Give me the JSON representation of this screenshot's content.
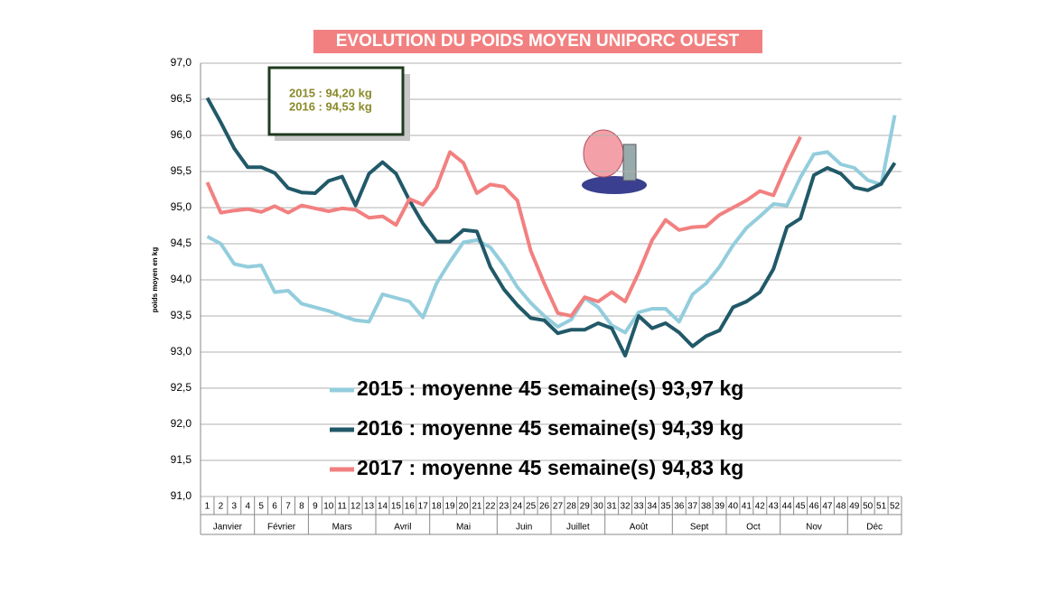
{
  "chart_data": {
    "type": "line",
    "title": "EVOLUTION DU POIDS MOYEN UNIPORC OUEST",
    "ylabel": "poids moyen en kg",
    "annotation": [
      "2015 : 94,20 kg",
      "2016 : 94,53 kg"
    ],
    "categories": [
      "1",
      "2",
      "3",
      "4",
      "5",
      "6",
      "7",
      "8",
      "9",
      "10",
      "11",
      "12",
      "13",
      "14",
      "15",
      "16",
      "17",
      "18",
      "19",
      "20",
      "21",
      "22",
      "23",
      "24",
      "25",
      "26",
      "27",
      "28",
      "29",
      "30",
      "31",
      "32",
      "33",
      "34",
      "35",
      "36",
      "37",
      "38",
      "39",
      "40",
      "41",
      "42",
      "43",
      "44",
      "45",
      "46",
      "47",
      "48",
      "49",
      "50",
      "51",
      "52"
    ],
    "month_groups": [
      {
        "label": "Janvier",
        "first": 1,
        "last": 4
      },
      {
        "label": "Février",
        "first": 5,
        "last": 8
      },
      {
        "label": "Mars",
        "first": 9,
        "last": 13
      },
      {
        "label": "Avril",
        "first": 14,
        "last": 17
      },
      {
        "label": "Mai",
        "first": 18,
        "last": 22
      },
      {
        "label": "Juin",
        "first": 23,
        "last": 26
      },
      {
        "label": "Juillet",
        "first": 27,
        "last": 30
      },
      {
        "label": "Août",
        "first": 31,
        "last": 35
      },
      {
        "label": "Sept",
        "first": 36,
        "last": 39
      },
      {
        "label": "Oct",
        "first": 40,
        "last": 43
      },
      {
        "label": "Nov",
        "first": 44,
        "last": 48
      },
      {
        "label": "Déc",
        "first": 49,
        "last": 52
      }
    ],
    "series": [
      {
        "name": "2015 : moyenne 45 semaine(s) 93,97 kg",
        "color": "#93cddd",
        "values": [
          94.6,
          94.5,
          94.22,
          94.18,
          94.2,
          93.83,
          93.85,
          93.67,
          93.62,
          93.57,
          93.5,
          93.44,
          93.42,
          93.8,
          93.75,
          93.7,
          93.48,
          93.95,
          94.25,
          94.52,
          94.55,
          94.45,
          94.2,
          93.9,
          93.68,
          93.5,
          93.35,
          93.45,
          93.75,
          93.62,
          93.37,
          93.27,
          93.55,
          93.6,
          93.6,
          93.42,
          93.8,
          93.95,
          94.18,
          94.48,
          94.72,
          94.88,
          95.05,
          95.03,
          95.42,
          95.74,
          95.77,
          95.6,
          95.55,
          95.38,
          95.32,
          96.28
        ]
      },
      {
        "name": "2016 : moyenne 45 semaine(s) 94,39 kg",
        "color": "#215968",
        "values": [
          96.52,
          96.18,
          95.82,
          95.56,
          95.56,
          95.48,
          95.27,
          95.21,
          95.2,
          95.37,
          95.43,
          95.03,
          95.47,
          95.63,
          95.47,
          95.1,
          94.78,
          94.53,
          94.53,
          94.69,
          94.67,
          94.18,
          93.87,
          93.65,
          93.47,
          93.44,
          93.26,
          93.31,
          93.31,
          93.4,
          93.33,
          92.95,
          93.5,
          93.33,
          93.4,
          93.27,
          93.08,
          93.22,
          93.3,
          93.62,
          93.7,
          93.83,
          94.15,
          94.73,
          94.85,
          95.45,
          95.55,
          95.47,
          95.28,
          95.24,
          95.33,
          95.62
        ]
      },
      {
        "name": "2017 : moyenne 45 semaine(s) 94,83 kg",
        "color": "#f28080",
        "values": [
          95.35,
          94.93,
          94.96,
          94.98,
          94.94,
          95.02,
          94.93,
          95.03,
          94.99,
          94.95,
          94.99,
          94.97,
          94.86,
          94.88,
          94.76,
          95.12,
          95.04,
          95.28,
          95.77,
          95.62,
          95.2,
          95.32,
          95.29,
          95.1,
          94.4,
          93.95,
          93.54,
          93.5,
          93.76,
          93.7,
          93.83,
          93.7,
          94.1,
          94.55,
          94.83,
          94.69,
          94.73,
          94.74,
          94.9,
          95.0,
          95.1,
          95.23,
          95.17,
          95.6,
          95.98,
          null,
          null,
          null,
          null,
          null,
          null,
          null
        ]
      }
    ],
    "ylim": [
      91,
      97
    ],
    "yticks": [
      {
        "value": 91,
        "label": "91,0"
      },
      {
        "value": 91.5,
        "label": "91,5"
      },
      {
        "value": 92,
        "label": "92,0"
      },
      {
        "value": 92.5,
        "label": "92,5"
      },
      {
        "value": 93,
        "label": "93,0"
      },
      {
        "value": 93.5,
        "label": "93,5"
      },
      {
        "value": 94,
        "label": "94,0"
      },
      {
        "value": 94.5,
        "label": "94,5"
      },
      {
        "value": 95,
        "label": "95,0"
      },
      {
        "value": 95.5,
        "label": "95,5"
      },
      {
        "value": 96,
        "label": "96,0"
      },
      {
        "value": 96.5,
        "label": "96,5"
      },
      {
        "value": 97,
        "label": "97,0"
      }
    ],
    "grid": true
  }
}
